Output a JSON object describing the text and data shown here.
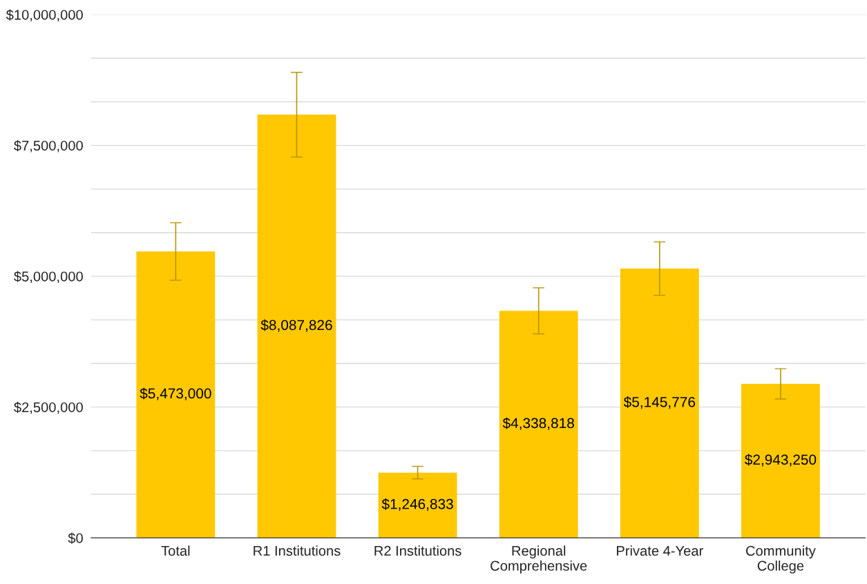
{
  "chart_data": {
    "type": "bar",
    "categories": [
      "Total",
      "R1 Institutions",
      "R2 Institutions",
      "Regional\nComprehensive",
      "Private 4-Year",
      "Community\nCollege"
    ],
    "values": [
      5473000,
      8087826,
      1246833,
      4338818,
      5145776,
      2943250
    ],
    "value_labels": [
      "$5,473,000",
      "$8,087,826",
      "$1,246,833",
      "$4,338,818",
      "$5,145,776",
      "$2,943,250"
    ],
    "errors": [
      550000,
      810000,
      120000,
      440000,
      510000,
      290000
    ],
    "color": "#ffc800",
    "ylim": [
      0,
      10000000
    ],
    "yticks": [
      {
        "value": 0,
        "label": "$0"
      },
      {
        "value": 833333,
        "label": null
      },
      {
        "value": 1666667,
        "label": null
      },
      {
        "value": 2500000,
        "label": "$2,500,000"
      },
      {
        "value": 3333333,
        "label": null
      },
      {
        "value": 4166667,
        "label": null
      },
      {
        "value": 5000000,
        "label": "$5,000,000"
      },
      {
        "value": 5833333,
        "label": null
      },
      {
        "value": 6666667,
        "label": null
      },
      {
        "value": 7500000,
        "label": "$7,500,000"
      },
      {
        "value": 8333333,
        "label": null
      },
      {
        "value": 9166667,
        "label": null
      },
      {
        "value": 10000000,
        "label": "$10,000,000"
      }
    ],
    "grid": "y",
    "legend": false
  }
}
